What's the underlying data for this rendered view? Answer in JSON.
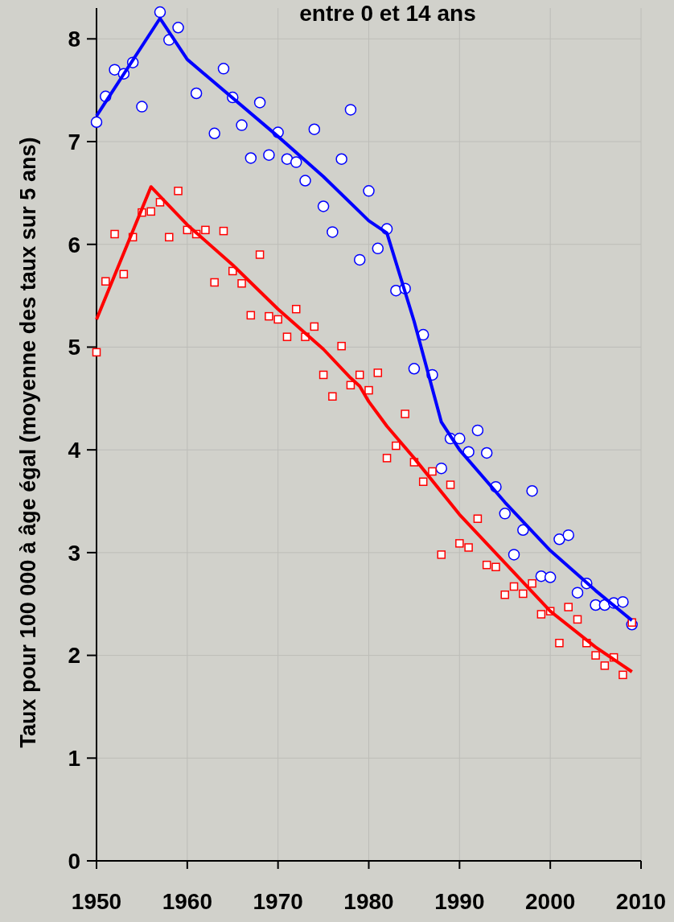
{
  "chart_data": {
    "type": "scatter",
    "title": "entre 0 et 14 ans",
    "ylabel": "Taux pour 100 000 à âge égal (moyenne des taux sur 5 ans)",
    "x": [
      1950,
      1951,
      1952,
      1953,
      1954,
      1955,
      1956,
      1957,
      1958,
      1959,
      1960,
      1961,
      1962,
      1963,
      1964,
      1965,
      1966,
      1967,
      1968,
      1969,
      1970,
      1971,
      1972,
      1973,
      1974,
      1975,
      1976,
      1977,
      1978,
      1979,
      1980,
      1981,
      1982,
      1983,
      1984,
      1985,
      1986,
      1987,
      1988,
      1989,
      1990,
      1991,
      1992,
      1993,
      1994,
      1995,
      1996,
      1997,
      1998,
      1999,
      2000,
      2001,
      2002,
      2003,
      2004,
      2005,
      2006,
      2007,
      2008,
      2009
    ],
    "series": [
      {
        "marker": "circle",
        "color": "#0000ff",
        "values": [
          7.19,
          7.44,
          7.7,
          7.66,
          7.77,
          7.34,
          null,
          8.26,
          7.99,
          8.11,
          null,
          7.47,
          null,
          7.08,
          7.71,
          7.43,
          7.16,
          6.84,
          7.38,
          6.87,
          7.09,
          6.83,
          6.8,
          6.62,
          7.12,
          6.37,
          6.12,
          6.83,
          7.31,
          5.85,
          6.52,
          5.96,
          6.15,
          5.55,
          5.57,
          4.79,
          5.12,
          4.73,
          3.82,
          4.11,
          4.11,
          3.98,
          4.19,
          3.97,
          3.64,
          3.38,
          2.98,
          3.22,
          3.6,
          2.77,
          2.76,
          3.13,
          3.17,
          2.61,
          2.7,
          2.49,
          2.49,
          2.51,
          2.52,
          2.3
        ]
      },
      {
        "marker": "square",
        "color": "#ff0000",
        "values": [
          4.95,
          5.64,
          6.1,
          5.71,
          6.07,
          6.31,
          6.32,
          6.41,
          6.07,
          6.52,
          6.14,
          6.1,
          6.14,
          5.63,
          6.13,
          5.74,
          5.62,
          5.31,
          5.9,
          5.3,
          5.27,
          5.1,
          5.37,
          5.1,
          5.2,
          4.73,
          4.52,
          5.01,
          4.63,
          4.73,
          4.58,
          4.75,
          3.92,
          4.04,
          4.35,
          3.88,
          3.69,
          3.79,
          2.98,
          3.66,
          3.09,
          3.05,
          3.33,
          2.88,
          2.86,
          2.59,
          2.67,
          2.6,
          2.7,
          2.4,
          2.43,
          2.12,
          2.47,
          2.35,
          2.12,
          2.0,
          1.9,
          1.98,
          1.81,
          2.32
        ]
      },
      {
        "type": "line",
        "color": "#0000ff",
        "x": [
          1950,
          1957,
          1960,
          1970,
          1975,
          1980,
          1982,
          1985,
          1988,
          1990,
          1995,
          2000,
          2005,
          2009
        ],
        "values": [
          7.25,
          8.2,
          7.8,
          7.05,
          6.66,
          6.23,
          6.11,
          5.25,
          4.27,
          4.0,
          3.49,
          3.02,
          2.63,
          2.34
        ]
      },
      {
        "type": "line",
        "color": "#ff0000",
        "x": [
          1950,
          1956,
          1960,
          1965,
          1970,
          1975,
          1978,
          1979,
          1980,
          1982,
          1985,
          1990,
          1995,
          2000,
          2005,
          2009
        ],
        "values": [
          5.27,
          6.56,
          6.19,
          5.8,
          5.37,
          4.98,
          4.7,
          4.62,
          4.47,
          4.23,
          3.92,
          3.37,
          2.9,
          2.43,
          2.08,
          1.84
        ]
      }
    ],
    "xlim": [
      1950,
      2010
    ],
    "xticks": [
      1950,
      1960,
      1970,
      1980,
      1990,
      2000,
      2010
    ],
    "ylim": [
      0,
      8.3
    ],
    "yticks": [
      0,
      1,
      2,
      3,
      4,
      5,
      6,
      7,
      8
    ],
    "grid": true
  }
}
